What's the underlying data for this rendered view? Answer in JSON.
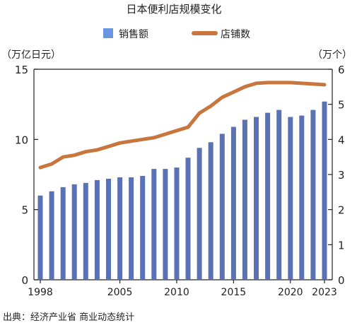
{
  "chart_data": {
    "type": "bar+line",
    "title": "日本便利店规模变化",
    "legend": [
      {
        "name": "销售额",
        "color": "#6a96e0",
        "kind": "bar"
      },
      {
        "name": "店铺数",
        "color": "#c8763d",
        "kind": "line"
      }
    ],
    "legend_placement": "top-center",
    "left_axis": {
      "label": "（万亿日元）",
      "ylim": [
        0,
        15
      ],
      "ticks": [
        0,
        5,
        10,
        15
      ]
    },
    "right_axis": {
      "label": "（万个）",
      "ylim": [
        0,
        6
      ],
      "ticks": [
        0,
        1,
        2,
        3,
        4,
        5,
        6
      ]
    },
    "x_ticks": [
      "1998",
      "2005",
      "2010",
      "2015",
      "2020",
      "2023"
    ],
    "x": [
      1998,
      1999,
      2000,
      2001,
      2002,
      2003,
      2004,
      2005,
      2006,
      2007,
      2008,
      2009,
      2010,
      2011,
      2012,
      2013,
      2014,
      2015,
      2016,
      2017,
      2018,
      2019,
      2020,
      2021,
      2022,
      2023
    ],
    "series": [
      {
        "name": "销售额",
        "axis": "left",
        "color": "#5a72b5",
        "values": [
          6.0,
          6.3,
          6.6,
          6.8,
          6.9,
          7.1,
          7.2,
          7.3,
          7.3,
          7.4,
          7.9,
          7.9,
          8.0,
          8.7,
          9.4,
          9.8,
          10.4,
          10.9,
          11.4,
          11.6,
          11.9,
          12.1,
          11.6,
          11.7,
          12.1,
          12.7
        ]
      },
      {
        "name": "店铺数",
        "axis": "right",
        "color": "#c8763d",
        "values": [
          3.2,
          3.3,
          3.5,
          3.55,
          3.65,
          3.7,
          3.8,
          3.9,
          3.95,
          4.0,
          4.05,
          4.15,
          4.25,
          4.35,
          4.75,
          4.95,
          5.2,
          5.35,
          5.5,
          5.6,
          5.62,
          5.62,
          5.62,
          5.6,
          5.58,
          5.56
        ]
      }
    ],
    "grid": false,
    "source": "出典：经济产业省  商业动态统计"
  }
}
